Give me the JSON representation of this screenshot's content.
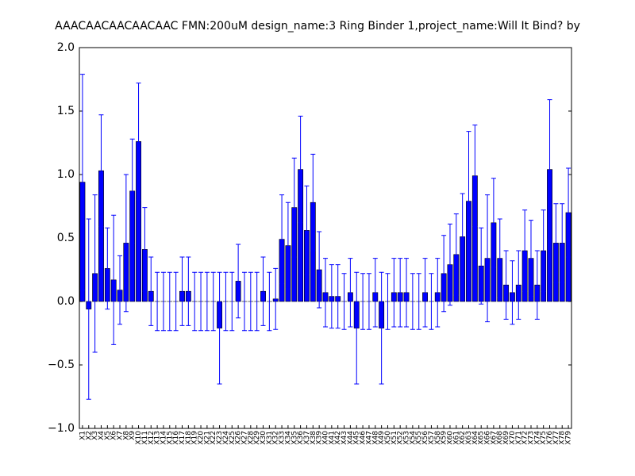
{
  "chart_data": {
    "type": "bar",
    "title": "AAACAACAACAACAAC  FMN:200uM  design_name:3 Ring Binder 1,project_name:Will It Bind? by",
    "categories": [
      "X1",
      "X2",
      "X3",
      "X4",
      "X5",
      "X6",
      "X7",
      "X8",
      "X9",
      "X10",
      "X11",
      "X12",
      "X13",
      "X14",
      "X15",
      "X16",
      "X17",
      "X18",
      "X19",
      "X20",
      "X21",
      "X22",
      "X23",
      "X24",
      "X25",
      "X26",
      "X27",
      "X28",
      "X29",
      "X30",
      "X31",
      "X32",
      "X33",
      "X34",
      "X35",
      "X36",
      "X37",
      "X38",
      "X39",
      "X40",
      "X41",
      "X42",
      "X43",
      "X44",
      "X45",
      "X46",
      "X47",
      "X48",
      "X49",
      "X50",
      "X51",
      "X52",
      "X53",
      "X54",
      "X55",
      "X56",
      "X57",
      "X58",
      "X59",
      "X60",
      "X61",
      "X62",
      "X63",
      "X64",
      "X65",
      "X66",
      "X67",
      "X68",
      "X69",
      "X70",
      "X71",
      "X72",
      "X73",
      "X74",
      "X75",
      "X76",
      "X77",
      "X78",
      "X79"
    ],
    "values": [
      0.94,
      -0.06,
      0.22,
      1.03,
      0.26,
      0.17,
      0.09,
      0.46,
      0.87,
      1.26,
      0.41,
      0.08,
      0,
      0,
      0,
      0,
      0.08,
      0.08,
      0,
      0,
      0,
      0,
      -0.21,
      0,
      0,
      0.16,
      0,
      0,
      0,
      0.08,
      0,
      0.02,
      0.49,
      0.44,
      0.74,
      1.04,
      0.56,
      0.78,
      0.25,
      0.07,
      0.04,
      0.04,
      0,
      0.07,
      -0.21,
      0,
      0,
      0.07,
      -0.21,
      0,
      0.07,
      0.07,
      0.07,
      0,
      0,
      0.07,
      0,
      0.07,
      0.22,
      0.29,
      0.37,
      0.51,
      0.79,
      0.99,
      0.28,
      0.34,
      0.62,
      0.34,
      0.13,
      0.07,
      0.13,
      0.4,
      0.34,
      0.13,
      0.4,
      1.04,
      0.46,
      0.46,
      0.7
    ],
    "errors": [
      0.85,
      0.71,
      0.62,
      0.44,
      0.32,
      0.51,
      0.27,
      0.54,
      0.41,
      0.46,
      0.33,
      0.27,
      0.23,
      0.23,
      0.23,
      0.23,
      0.27,
      0.27,
      0.23,
      0.23,
      0.23,
      0.23,
      0.44,
      0.23,
      0.23,
      0.29,
      0.23,
      0.23,
      0.23,
      0.27,
      0.23,
      0.24,
      0.35,
      0.34,
      0.39,
      0.42,
      0.35,
      0.38,
      0.3,
      0.27,
      0.25,
      0.25,
      0.22,
      0.27,
      0.44,
      0.22,
      0.22,
      0.27,
      0.44,
      0.22,
      0.27,
      0.27,
      0.27,
      0.22,
      0.22,
      0.27,
      0.22,
      0.27,
      0.3,
      0.32,
      0.32,
      0.34,
      0.55,
      0.4,
      0.3,
      0.5,
      0.35,
      0.31,
      0.27,
      0.25,
      0.27,
      0.32,
      0.3,
      0.27,
      0.32,
      0.55,
      0.31,
      0.31,
      0.35
    ],
    "color": "#0000ff",
    "error_color": "#0000ff",
    "ylim": [
      -1.0,
      2.0
    ],
    "yticks": [
      {
        "value": -1.0,
        "label": "−1.0"
      },
      {
        "value": -0.5,
        "label": "−0.5"
      },
      {
        "value": 0.0,
        "label": "0.0"
      },
      {
        "value": 0.5,
        "label": "0.5"
      },
      {
        "value": 1.0,
        "label": "1.0"
      },
      {
        "value": 1.5,
        "label": "1.5"
      },
      {
        "value": 2.0,
        "label": "2.0"
      }
    ],
    "grid": false
  }
}
